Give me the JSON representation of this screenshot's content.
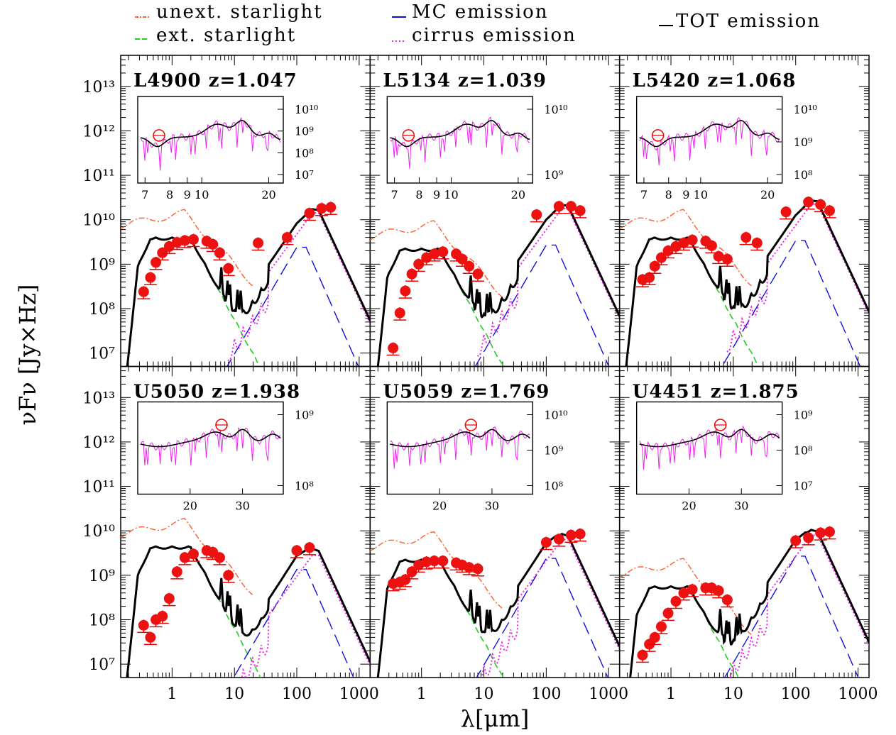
{
  "figure": {
    "ylabel": "νFν [Jy×Hz]",
    "xlabel": "λ[μm]"
  },
  "legend": [
    {
      "label": "unext. starlight",
      "color": "#ff5a28",
      "dash": "8,3,2,3"
    },
    {
      "label": "ext. starlight",
      "color": "#22cc22",
      "dash": "9,5"
    },
    {
      "label": "MC emission",
      "color": "#1010dd",
      "dash": "18,8"
    },
    {
      "label": "cirrus emission",
      "color": "#ee22ee",
      "dash": "2,3"
    },
    {
      "label": "TOT emission",
      "color": "#000000",
      "dash": ""
    }
  ],
  "axes": {
    "x_ticks": [
      "1",
      "10",
      "100",
      "1000"
    ],
    "y_ticks": [
      "10¹³",
      "10¹²",
      "10¹¹",
      "10¹⁰",
      "10⁹",
      "10⁸",
      "10⁷"
    ]
  },
  "chart_data": [
    {
      "type": "line",
      "title": "L4900 z=1.047",
      "xscale": "log",
      "yscale": "log",
      "xlim": [
        0.15,
        1500
      ],
      "ylim": [
        5000000.0,
        50000000000000.0
      ],
      "photometry": {
        "x": [
          0.35,
          0.45,
          0.55,
          0.7,
          0.9,
          1.2,
          1.6,
          2.2,
          3.6,
          4.5,
          5.8,
          8,
          24,
          70,
          160,
          250,
          350
        ],
        "y": [
          240000000.0,
          500000000.0,
          1100000000.0,
          1800000000.0,
          2500000000.0,
          3100000000.0,
          3400000000.0,
          3600000000.0,
          3300000000.0,
          2800000000.0,
          1800000000.0,
          800000000.0,
          3000000000.0,
          4000000000.0,
          14000000000.0,
          18000000000.0,
          19000000000.0
        ]
      },
      "inset": {
        "xticks": [
          "7",
          "8",
          "9",
          "10",
          "20"
        ],
        "yticks": [
          "10¹⁰",
          "10⁹",
          "10⁸",
          "10⁷"
        ]
      }
    },
    {
      "type": "line",
      "title": "L5134 z=1.039",
      "xscale": "log",
      "yscale": "log",
      "xlim": [
        0.15,
        1500
      ],
      "ylim": [
        5000000.0,
        50000000000000.0
      ],
      "photometry": {
        "x": [
          0.35,
          0.45,
          0.55,
          0.7,
          0.9,
          1.2,
          1.6,
          2.2,
          3.6,
          4.5,
          5.8,
          8,
          70,
          160,
          250,
          350
        ],
        "y": [
          13000000.0,
          80000000.0,
          250000000.0,
          600000000.0,
          1000000000.0,
          1400000000.0,
          1700000000.0,
          1900000000.0,
          1700000000.0,
          1300000000.0,
          900000000.0,
          600000000.0,
          13000000000.0,
          20000000000.0,
          20000000000.0,
          16000000000.0
        ]
      },
      "inset": {
        "xticks": [
          "7",
          "8",
          "9",
          "10",
          "20"
        ],
        "yticks": [
          "10¹⁰",
          "10⁹"
        ]
      }
    },
    {
      "type": "line",
      "title": "L5420 z=1.068",
      "xscale": "log",
      "yscale": "log",
      "xlim": [
        0.15,
        1500
      ],
      "ylim": [
        5000000.0,
        50000000000000.0
      ],
      "photometry": {
        "x": [
          0.35,
          0.45,
          0.55,
          0.7,
          0.9,
          1.2,
          1.6,
          2.2,
          3.6,
          4.5,
          5.8,
          8,
          16,
          24,
          70,
          160,
          250,
          350
        ],
        "y": [
          450000000.0,
          500000000.0,
          900000000.0,
          1400000000.0,
          2000000000.0,
          2500000000.0,
          3000000000.0,
          3500000000.0,
          3300000000.0,
          2600000000.0,
          1500000000.0,
          1300000000.0,
          4000000000.0,
          3000000000.0,
          15000000000.0,
          25000000000.0,
          22000000000.0,
          16000000000.0
        ]
      },
      "inset": {
        "xticks": [
          "7",
          "8",
          "9",
          "10",
          "20"
        ],
        "yticks": [
          "10¹⁰",
          "10⁹",
          "10⁸"
        ]
      }
    },
    {
      "type": "line",
      "title": "U5050 z=1.938",
      "xscale": "log",
      "yscale": "log",
      "xlim": [
        0.15,
        1500
      ],
      "ylim": [
        5000000.0,
        50000000000000.0
      ],
      "photometry": {
        "x": [
          0.35,
          0.45,
          0.55,
          0.7,
          0.9,
          1.2,
          1.6,
          2.2,
          3.6,
          4.5,
          5.8,
          8,
          100,
          160
        ],
        "y": [
          75000000.0,
          40000000.0,
          100000000.0,
          120000000.0,
          300000000.0,
          1200000000.0,
          2500000000.0,
          3000000000.0,
          3600000000.0,
          3300000000.0,
          2500000000.0,
          1000000000.0,
          3600000000.0,
          4200000000.0
        ]
      },
      "inset": {
        "xticks": [
          "20",
          "30"
        ],
        "yticks": [
          "10⁹",
          "10⁸"
        ]
      }
    },
    {
      "type": "line",
      "title": "U5059 z=1.769",
      "xscale": "log",
      "yscale": "log",
      "xlim": [
        0.15,
        1500
      ],
      "ylim": [
        5000000.0,
        50000000000000.0
      ],
      "photometry": {
        "x": [
          0.35,
          0.45,
          0.55,
          0.7,
          0.9,
          1.2,
          1.6,
          2.2,
          3.6,
          4.5,
          5.8,
          8,
          100,
          160,
          250,
          350
        ],
        "y": [
          650000000.0,
          700000000.0,
          800000000.0,
          1200000000.0,
          1700000000.0,
          2000000000.0,
          2100000000.0,
          2100000000.0,
          1900000000.0,
          1700000000.0,
          1500000000.0,
          1400000000.0,
          5500000000.0,
          6500000000.0,
          8000000000.0,
          8500000000.0
        ]
      },
      "inset": {
        "xticks": [
          "20",
          "30"
        ],
        "yticks": [
          "10¹⁰",
          "10⁹",
          "10⁸"
        ]
      }
    },
    {
      "type": "line",
      "title": "U4451 z=1.875",
      "xscale": "log",
      "yscale": "log",
      "xlim": [
        0.15,
        1500
      ],
      "ylim": [
        5000000.0,
        50000000000000.0
      ],
      "photometry": {
        "x": [
          0.35,
          0.45,
          0.55,
          0.7,
          0.9,
          1.2,
          1.6,
          2.2,
          3.6,
          4.5,
          5.8,
          8,
          100,
          160,
          250,
          350
        ],
        "y": [
          16000000.0,
          28000000.0,
          40000000.0,
          70000000.0,
          140000000.0,
          260000000.0,
          400000000.0,
          480000000.0,
          520000000.0,
          520000000.0,
          450000000.0,
          280000000.0,
          6000000000.0,
          7000000000.0,
          9000000000.0,
          9500000000.0
        ]
      },
      "inset": {
        "xticks": [
          "20",
          "30"
        ],
        "yticks": [
          "10⁹",
          "10⁸",
          "10⁷"
        ]
      }
    }
  ]
}
